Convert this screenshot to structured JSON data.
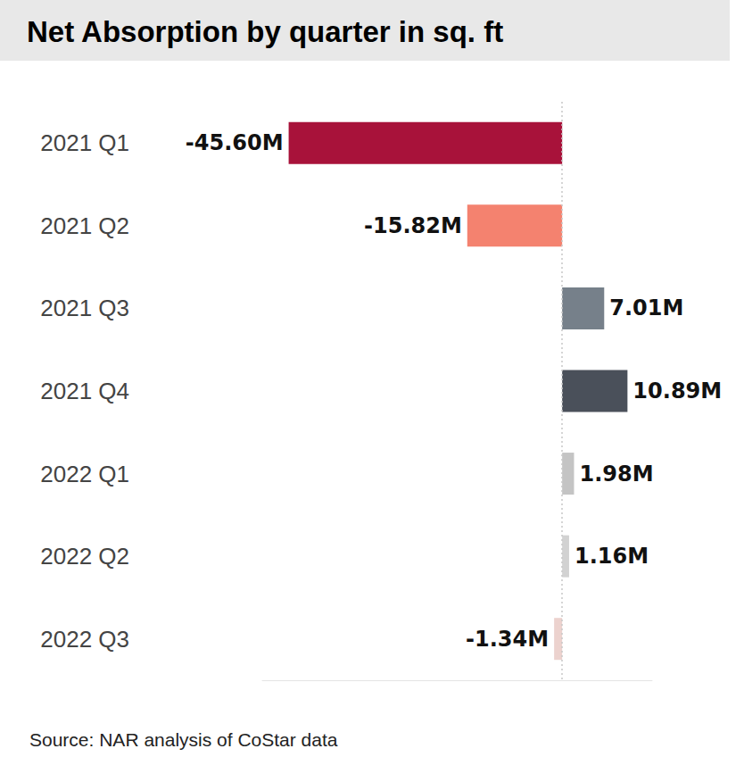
{
  "chart_data": {
    "type": "bar",
    "title": "Net Absorption by quarter in sq. ft",
    "source": "Source: NAR analysis of CoStar data",
    "orientation": "horizontal",
    "categories": [
      "2021 Q1",
      "2021 Q2",
      "2021 Q3",
      "2021 Q4",
      "2022 Q1",
      "2022 Q2",
      "2022 Q3"
    ],
    "values": [
      -45600000,
      -15820000,
      7010000,
      10890000,
      1980000,
      1160000,
      -1340000
    ],
    "value_labels": [
      "-45.60M",
      "-15.82M",
      "7.01M",
      "10.89M",
      "1.98M",
      "1.16M",
      "-1.34M"
    ],
    "colors": [
      "#a8123a",
      "#f4826f",
      "#76808a",
      "#4a505a",
      "#c4c4c4",
      "#d2d2d2",
      "#ecd2ce"
    ],
    "xlim": [
      -50000000,
      15000000
    ],
    "xticks": [
      0
    ],
    "grid": true,
    "data_labels": true,
    "tick_labels": "y"
  }
}
